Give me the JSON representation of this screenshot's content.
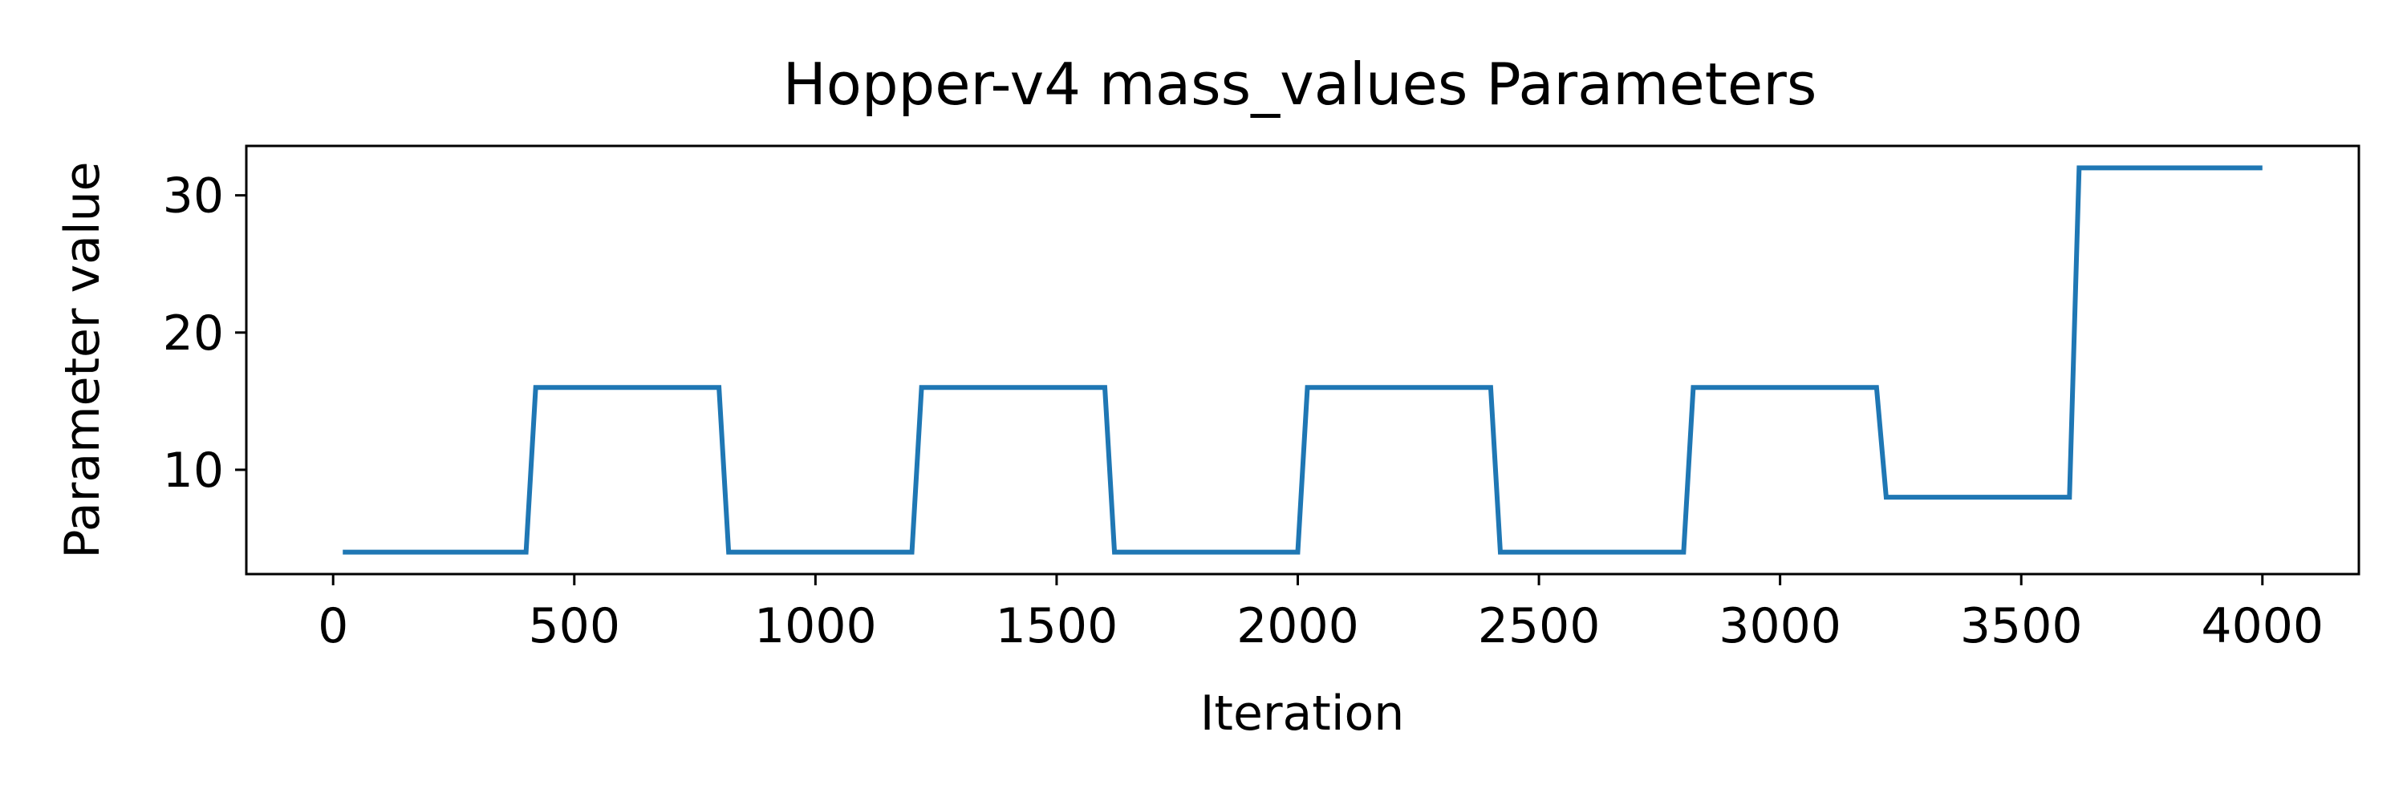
{
  "chart_data": {
    "type": "line",
    "title": "Hopper-v4 mass_values Parameters",
    "xlabel": "Iteration",
    "ylabel": "Parameter value",
    "xlim": [
      -180,
      4200
    ],
    "ylim": [
      2.4,
      33.6
    ],
    "xticks": [
      0,
      500,
      1000,
      1500,
      2000,
      2500,
      3000,
      3500,
      4000
    ],
    "xtick_labels": [
      "0",
      "500",
      "1000",
      "1500",
      "2000",
      "2500",
      "3000",
      "3500",
      "4000"
    ],
    "yticks": [
      10,
      20,
      30
    ],
    "ytick_labels": [
      "10",
      "20",
      "30"
    ],
    "grid": false,
    "legend": "none",
    "series": [
      {
        "color": "#1f77b4",
        "x": [
          20,
          400,
          420,
          800,
          820,
          1200,
          1220,
          1600,
          1620,
          2000,
          2020,
          2400,
          2420,
          2800,
          2820,
          3200,
          3220,
          3600,
          3620,
          4000
        ],
        "y": [
          4,
          4,
          16,
          16,
          4,
          4,
          16,
          16,
          4,
          4,
          16,
          16,
          4,
          4,
          16,
          16,
          8,
          8,
          32,
          32
        ]
      }
    ]
  }
}
